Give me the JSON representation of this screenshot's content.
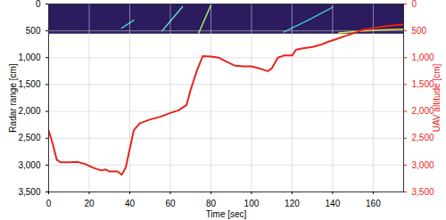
{
  "chart_data": {
    "type": "line",
    "xlabel": "Time [sec]",
    "ylabel": "Radar range [cm]",
    "y2label": "UAV altitude [cm]",
    "xlim": [
      0,
      175
    ],
    "xticks": [
      0,
      20,
      40,
      60,
      80,
      100,
      120,
      140,
      160
    ],
    "ylim": [
      0,
      3500
    ],
    "yticks": [
      0,
      500,
      1000,
      1500,
      2000,
      2500,
      3000,
      3500
    ],
    "y2lim": [
      0,
      3500
    ],
    "y2ticks": [
      0,
      500,
      1000,
      1500,
      2000,
      2500,
      3000,
      3500
    ],
    "grid": true,
    "color": "#e8231c",
    "x": [
      0,
      2,
      4,
      6,
      10,
      14,
      18,
      22,
      26,
      28,
      30,
      34,
      36,
      38,
      40,
      42,
      45,
      50,
      55,
      60,
      64,
      68,
      70,
      73,
      76,
      80,
      84,
      88,
      92,
      96,
      100,
      104,
      108,
      110,
      113,
      116,
      120,
      122,
      126,
      130,
      134,
      138,
      142,
      146,
      150,
      155,
      160,
      165,
      170,
      175
    ],
    "values": [
      2350,
      2600,
      2900,
      2950,
      2950,
      2940,
      2980,
      3050,
      3100,
      3080,
      3120,
      3120,
      3180,
      3050,
      2700,
      2350,
      2220,
      2150,
      2100,
      2030,
      1980,
      1880,
      1600,
      1250,
      970,
      980,
      1000,
      1080,
      1150,
      1160,
      1160,
      1200,
      1250,
      1200,
      1000,
      960,
      960,
      850,
      820,
      800,
      760,
      700,
      650,
      600,
      550,
      480,
      450,
      420,
      400,
      380
    ],
    "radargram": {
      "ylim": [
        0,
        560
      ],
      "traces": [
        {
          "x": [
            36,
            42
          ],
          "y": [
            450,
            300
          ]
        },
        {
          "x": [
            56,
            66
          ],
          "y": [
            500,
            50
          ]
        },
        {
          "x": [
            74,
            80
          ],
          "y": [
            540,
            20
          ]
        },
        {
          "x": [
            116,
            128,
            140
          ],
          "y": [
            520,
            300,
            60
          ]
        },
        {
          "x": [
            143,
            155,
            165,
            175
          ],
          "y": [
            540,
            500,
            480,
            470
          ]
        }
      ]
    }
  }
}
